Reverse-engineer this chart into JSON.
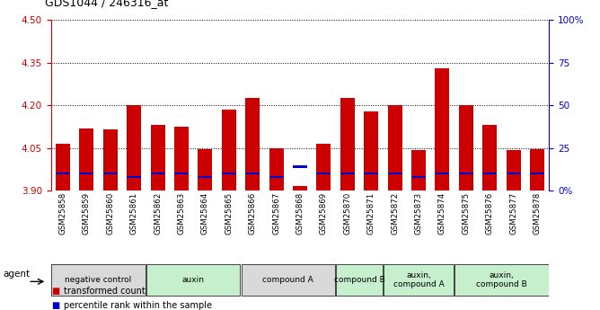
{
  "title": "GDS1044 / 246316_at",
  "samples": [
    "GSM25858",
    "GSM25859",
    "GSM25860",
    "GSM25861",
    "GSM25862",
    "GSM25863",
    "GSM25864",
    "GSM25865",
    "GSM25866",
    "GSM25867",
    "GSM25868",
    "GSM25869",
    "GSM25870",
    "GSM25871",
    "GSM25872",
    "GSM25873",
    "GSM25874",
    "GSM25875",
    "GSM25876",
    "GSM25877",
    "GSM25878"
  ],
  "red_values": [
    4.065,
    4.12,
    4.115,
    4.2,
    4.13,
    4.125,
    4.045,
    4.185,
    4.225,
    4.048,
    3.915,
    4.065,
    4.225,
    4.18,
    4.2,
    4.043,
    4.33,
    4.2,
    4.13,
    4.042,
    4.047
  ],
  "blue_percentiles": [
    10,
    10,
    10,
    8,
    10,
    10,
    8,
    10,
    10,
    8,
    14,
    10,
    10,
    10,
    10,
    8,
    10,
    10,
    10,
    10,
    10
  ],
  "agent_groups": [
    {
      "label": "negative control",
      "start": 0,
      "end": 4,
      "color": "#d9d9d9"
    },
    {
      "label": "auxin",
      "start": 4,
      "end": 8,
      "color": "#c6efce"
    },
    {
      "label": "compound A",
      "start": 8,
      "end": 12,
      "color": "#d9d9d9"
    },
    {
      "label": "compound B",
      "start": 12,
      "end": 14,
      "color": "#c6efce"
    },
    {
      "label": "auxin,\ncompound A",
      "start": 14,
      "end": 17,
      "color": "#c6efce"
    },
    {
      "label": "auxin,\ncompound B",
      "start": 17,
      "end": 21,
      "color": "#c6efce"
    }
  ],
  "ylim_left": [
    3.9,
    4.5
  ],
  "ylim_right": [
    0,
    100
  ],
  "yticks_left": [
    3.9,
    4.05,
    4.2,
    4.35,
    4.5
  ],
  "yticks_right": [
    0,
    25,
    50,
    75,
    100
  ],
  "ytick_labels_right": [
    "0%",
    "25",
    "50",
    "75",
    "100%"
  ],
  "bar_width": 0.6,
  "red_color": "#cc0000",
  "blue_color": "#0000cc",
  "left_tick_color": "#cc0000",
  "right_tick_color": "#0000cc",
  "legend_red": "transformed count",
  "legend_blue": "percentile rank within the sample",
  "agent_label": "agent"
}
